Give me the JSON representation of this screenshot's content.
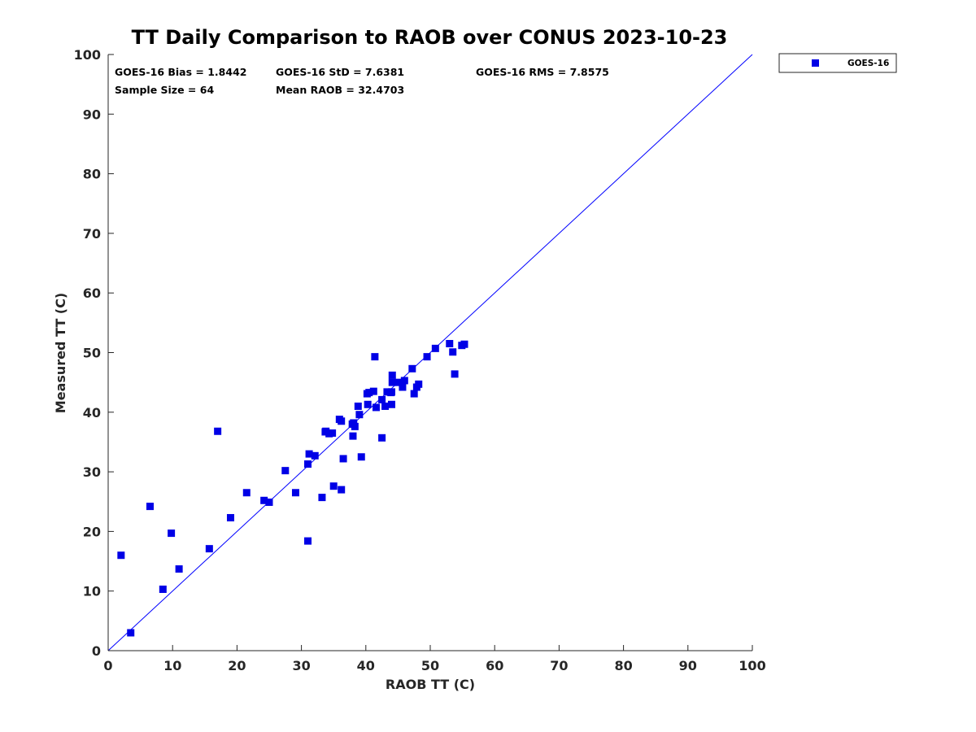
{
  "chart_data": {
    "type": "scatter",
    "title": "TT Daily Comparison to RAOB over CONUS 2023-10-23",
    "xlabel": "RAOB TT (C)",
    "ylabel": "Measured TT (C)",
    "xlim": [
      0,
      100
    ],
    "ylim": [
      0,
      100
    ],
    "xticks": [
      0,
      10,
      20,
      30,
      40,
      50,
      60,
      70,
      80,
      90,
      100
    ],
    "yticks": [
      0,
      10,
      20,
      30,
      40,
      50,
      60,
      70,
      80,
      90,
      100
    ],
    "legend": {
      "position": "top-right-outside",
      "entries": [
        "GOES-16"
      ]
    },
    "reference_line": {
      "from": [
        0,
        0
      ],
      "to": [
        100,
        100
      ],
      "color": "#0000ff"
    },
    "stats": {
      "bias": "GOES-16 Bias = 1.8442",
      "std": "GOES-16 StD = 7.6381",
      "rms": "GOES-16 RMS = 7.8575",
      "sample_size": "Sample Size = 64",
      "mean_raob": "Mean RAOB = 32.4703"
    },
    "series": [
      {
        "name": "GOES-16",
        "color": "#0000e6",
        "marker": "square",
        "points": [
          [
            2.0,
            16.0
          ],
          [
            3.5,
            3.0
          ],
          [
            6.5,
            24.2
          ],
          [
            8.5,
            10.3
          ],
          [
            9.8,
            19.7
          ],
          [
            11.0,
            13.7
          ],
          [
            15.7,
            17.1
          ],
          [
            17.0,
            36.8
          ],
          [
            19.0,
            22.3
          ],
          [
            21.5,
            26.5
          ],
          [
            24.2,
            25.2
          ],
          [
            25.0,
            24.9
          ],
          [
            27.5,
            30.2
          ],
          [
            29.1,
            26.5
          ],
          [
            31.0,
            31.3
          ],
          [
            31.2,
            33.0
          ],
          [
            32.1,
            32.7
          ],
          [
            31.0,
            18.4
          ],
          [
            33.2,
            25.7
          ],
          [
            33.7,
            36.7
          ],
          [
            34.3,
            36.4
          ],
          [
            34.8,
            36.5
          ],
          [
            35.0,
            27.6
          ],
          [
            35.9,
            38.8
          ],
          [
            36.2,
            38.5
          ],
          [
            36.5,
            32.2
          ],
          [
            36.2,
            27.0
          ],
          [
            38.0,
            36.0
          ],
          [
            38.1,
            38.2
          ],
          [
            38.3,
            37.6
          ],
          [
            38.8,
            41.0
          ],
          [
            39.0,
            39.6
          ],
          [
            39.3,
            32.5
          ],
          [
            40.3,
            41.3
          ],
          [
            40.5,
            43.3
          ],
          [
            41.2,
            43.5
          ],
          [
            41.4,
            49.3
          ],
          [
            41.6,
            40.8
          ],
          [
            42.5,
            42.1
          ],
          [
            42.5,
            35.7
          ],
          [
            43.0,
            41.0
          ],
          [
            43.9,
            43.3
          ],
          [
            44.1,
            45.0
          ],
          [
            44.1,
            46.2
          ],
          [
            44.0,
            41.3
          ],
          [
            45.2,
            45.0
          ],
          [
            45.7,
            44.2
          ],
          [
            47.2,
            47.3
          ],
          [
            47.5,
            43.1
          ],
          [
            47.9,
            44.2
          ],
          [
            48.2,
            44.7
          ],
          [
            49.5,
            49.3
          ],
          [
            50.8,
            50.7
          ],
          [
            53.0,
            51.5
          ],
          [
            53.5,
            50.1
          ],
          [
            53.8,
            46.4
          ],
          [
            54.9,
            51.2
          ],
          [
            55.3,
            51.4
          ],
          [
            44.0,
            43.4
          ],
          [
            37.9,
            38.0
          ],
          [
            46.0,
            45.3
          ],
          [
            40.2,
            43.1
          ],
          [
            43.3,
            43.4
          ],
          [
            33.8,
            36.8
          ]
        ]
      }
    ]
  }
}
